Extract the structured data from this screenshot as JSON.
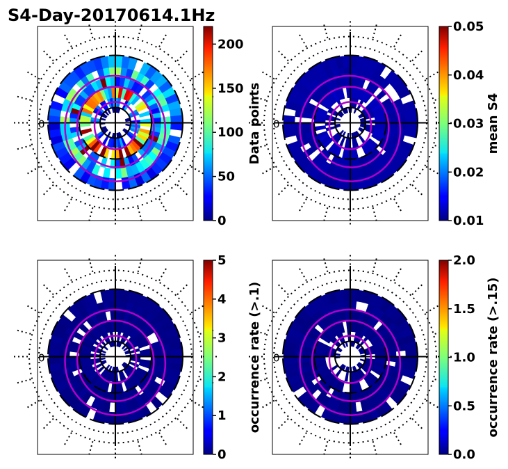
{
  "figure_title": "S4-Day-20170614.1Hz",
  "chart_data": [
    {
      "type": "heatmap",
      "projection": "polar",
      "variable": "data_points",
      "colorbar": {
        "label": "Data points",
        "vmin": 0,
        "vmax": 220,
        "ticks": [
          0,
          50,
          100,
          150,
          200
        ],
        "tick_labels": [
          "0",
          "50",
          "100",
          "150",
          "200"
        ]
      },
      "ring_values": [
        0,
        40,
        120,
        50,
        70,
        30
      ],
      "side_label": "0"
    },
    {
      "type": "heatmap",
      "projection": "polar",
      "variable": "mean_s4",
      "colorbar": {
        "label": "mean S4",
        "vmin": 0.01,
        "vmax": 0.05,
        "ticks": [
          0.01,
          0.02,
          0.03,
          0.04,
          0.05
        ],
        "tick_labels": [
          "0.01",
          "0.02",
          "0.03",
          "0.04",
          "0.05"
        ]
      },
      "ring_values": [
        0.01,
        0.011,
        0.012,
        0.011,
        0.011,
        0.011
      ],
      "side_label": "0"
    },
    {
      "type": "heatmap",
      "projection": "polar",
      "variable": "occurrence_rate_gt_0.1",
      "colorbar": {
        "label": "occurrence rate (>.1)",
        "vmin": 0,
        "vmax": 5,
        "ticks": [
          0,
          1,
          2,
          3,
          4,
          5
        ],
        "tick_labels": [
          "0",
          "1",
          "2",
          "3",
          "4",
          "5"
        ]
      },
      "ring_values": [
        0,
        0,
        0,
        0,
        0,
        0
      ],
      "side_label": "0"
    },
    {
      "type": "heatmap",
      "projection": "polar",
      "variable": "occurrence_rate_gt_0.15",
      "colorbar": {
        "label": "occurrence rate (>.15)",
        "vmin": 0,
        "vmax": 2,
        "ticks": [
          0,
          0.5,
          1,
          1.5,
          2
        ],
        "tick_labels": [
          "0.0",
          "0.5",
          "1.0",
          "1.5",
          "2.0"
        ]
      },
      "ring_values": [
        0,
        0,
        0,
        0,
        0,
        0
      ],
      "side_label": "0"
    }
  ]
}
